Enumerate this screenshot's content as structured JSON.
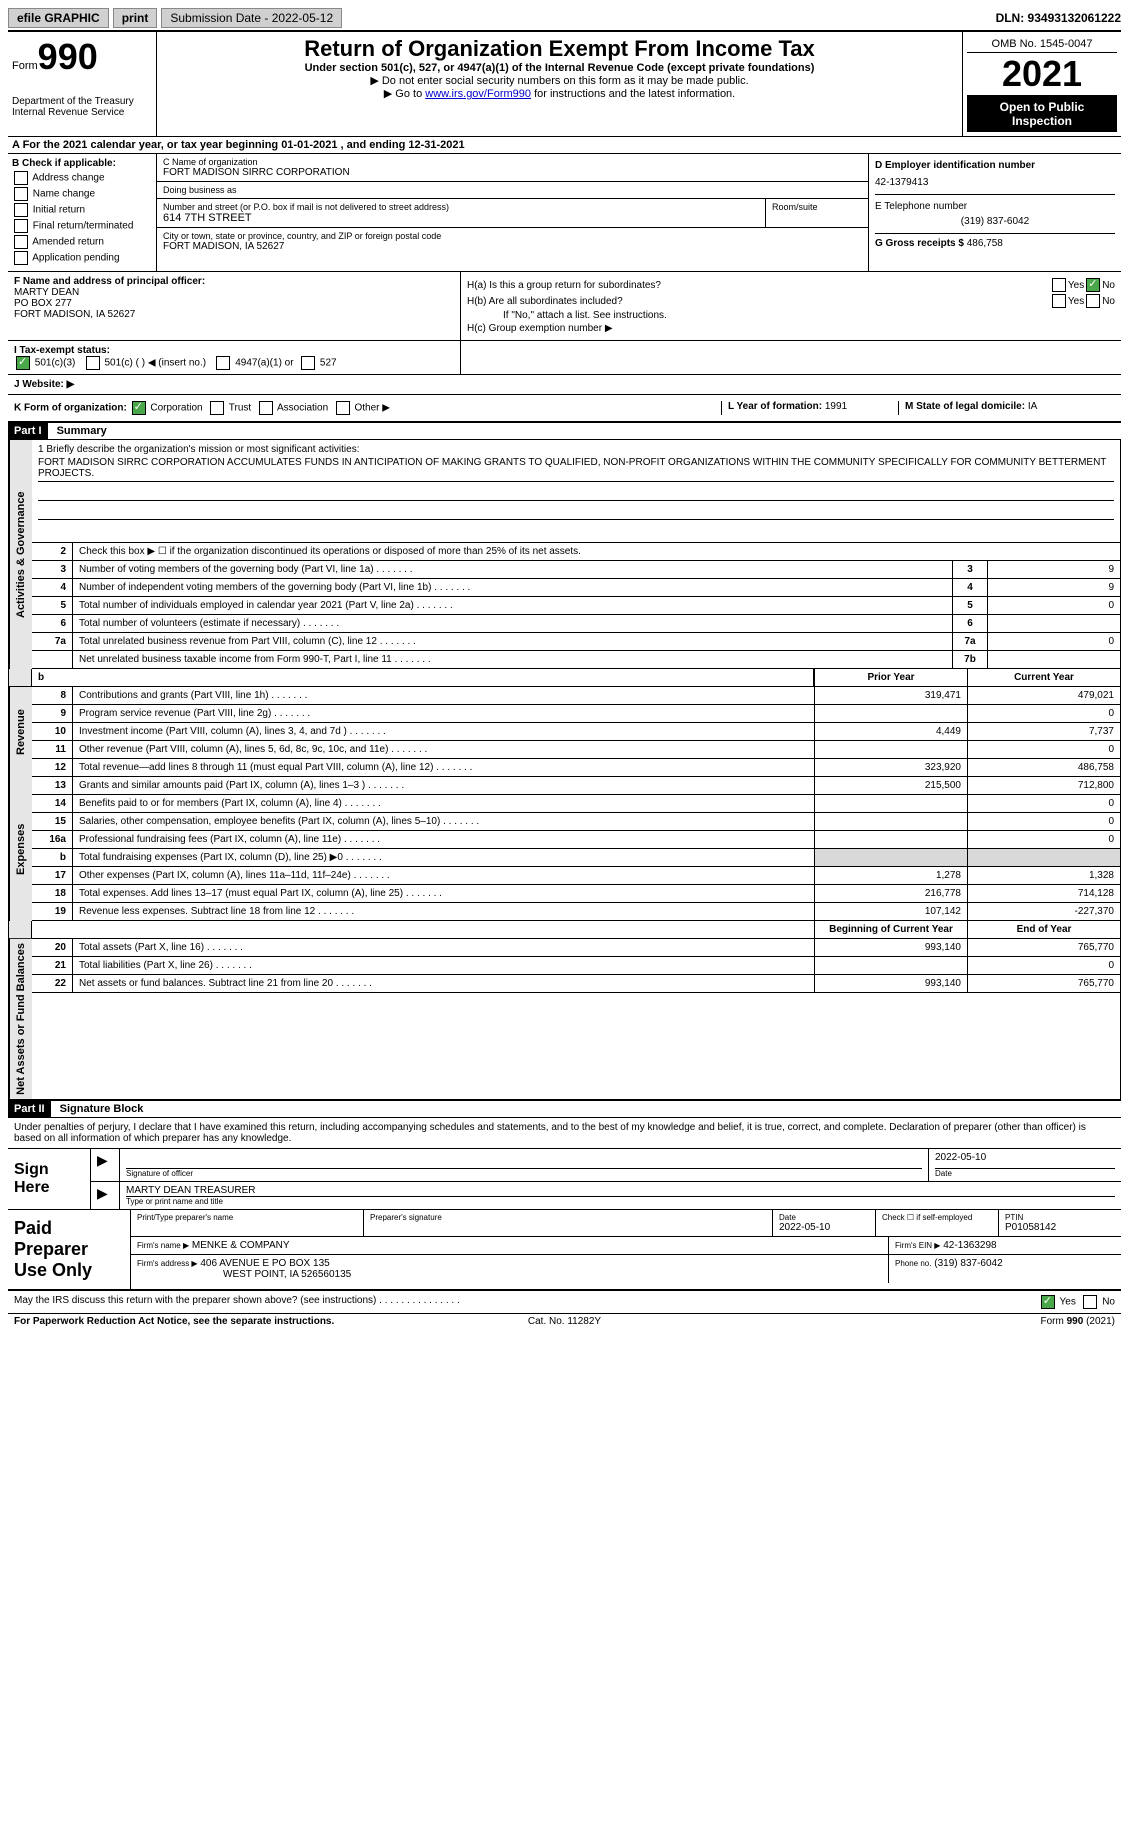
{
  "topbar": {
    "efile": "efile GRAPHIC",
    "print": "print",
    "sub_date_label": "Submission Date - 2022-05-12",
    "dln": "DLN: 93493132061222"
  },
  "header": {
    "form_word": "Form",
    "form_num": "990",
    "dept": "Department of the Treasury\nInternal Revenue Service",
    "title": "Return of Organization Exempt From Income Tax",
    "subtitle": "Under section 501(c), 527, or 4947(a)(1) of the Internal Revenue Code (except private foundations)",
    "instr1": "▶ Do not enter social security numbers on this form as it may be made public.",
    "instr2_pre": "▶ Go to ",
    "instr2_link": "www.irs.gov/Form990",
    "instr2_post": " for instructions and the latest information.",
    "omb": "OMB No. 1545-0047",
    "year": "2021",
    "open": "Open to Public Inspection"
  },
  "lineA": "A For the 2021 calendar year, or tax year beginning 01-01-2021   , and ending 12-31-2021",
  "boxB": {
    "label": "B Check if applicable:",
    "opts": [
      "Address change",
      "Name change",
      "Initial return",
      "Final return/terminated",
      "Amended return",
      "Application pending"
    ]
  },
  "boxC": {
    "name_lbl": "C Name of organization",
    "name": "FORT MADISON SIRRC CORPORATION",
    "dba_lbl": "Doing business as",
    "dba": "",
    "addr_lbl": "Number and street (or P.O. box if mail is not delivered to street address)",
    "addr": "614 7TH STREET",
    "room_lbl": "Room/suite",
    "city_lbl": "City or town, state or province, country, and ZIP or foreign postal code",
    "city": "FORT MADISON, IA  52627"
  },
  "boxD": {
    "ein_lbl": "D Employer identification number",
    "ein": "42-1379413",
    "phone_lbl": "E Telephone number",
    "phone": "(319) 837-6042",
    "gross_lbl": "G Gross receipts $",
    "gross": "486,758"
  },
  "boxF": {
    "lbl": "F Name and address of principal officer:",
    "name": "MARTY DEAN",
    "addr1": "PO BOX 277",
    "addr2": "FORT MADISON, IA  52627"
  },
  "boxH": {
    "a_lbl": "H(a)  Is this a group return for subordinates?",
    "b_lbl": "H(b)  Are all subordinates included?",
    "b_note": "If \"No,\" attach a list. See instructions.",
    "c_lbl": "H(c)  Group exemption number ▶",
    "yes": "Yes",
    "no": "No"
  },
  "lineI": {
    "lbl": "I   Tax-exempt status:",
    "o1": "501(c)(3)",
    "o2": "501(c) (  ) ◀ (insert no.)",
    "o3": "4947(a)(1) or",
    "o4": "527"
  },
  "lineJ": {
    "lbl": "J   Website: ▶"
  },
  "lineK": {
    "lbl": "K Form of organization:",
    "o1": "Corporation",
    "o2": "Trust",
    "o3": "Association",
    "o4": "Other ▶",
    "l_lbl": "L Year of formation:",
    "l_val": "1991",
    "m_lbl": "M State of legal domicile:",
    "m_val": "IA"
  },
  "part1": {
    "hdr": "Part I",
    "title": "Summary",
    "q1_lbl": "1   Briefly describe the organization's mission or most significant activities:",
    "q1_val": "FORT MADISON SIRRC CORPORATION ACCUMULATES FUNDS IN ANTICIPATION OF MAKING GRANTS TO QUALIFIED, NON-PROFIT ORGANIZATIONS WITHIN THE COMMUNITY SPECIFICALLY FOR COMMUNITY BETTERMENT PROJECTS.",
    "q2_lbl": "Check this box ▶ ☐ if the organization discontinued its operations or disposed of more than 25% of its net assets.",
    "tabs": {
      "act": "Activities & Governance",
      "rev": "Revenue",
      "exp": "Expenses",
      "net": "Net Assets or Fund Balances"
    },
    "rows_single": [
      {
        "n": "3",
        "d": "Number of voting members of the governing body (Part VI, line 1a)",
        "box": "3",
        "v": "9"
      },
      {
        "n": "4",
        "d": "Number of independent voting members of the governing body (Part VI, line 1b)",
        "box": "4",
        "v": "9"
      },
      {
        "n": "5",
        "d": "Total number of individuals employed in calendar year 2021 (Part V, line 2a)",
        "box": "5",
        "v": "0"
      },
      {
        "n": "6",
        "d": "Total number of volunteers (estimate if necessary)",
        "box": "6",
        "v": ""
      },
      {
        "n": "7a",
        "d": "Total unrelated business revenue from Part VIII, column (C), line 12",
        "box": "7a",
        "v": "0"
      },
      {
        "n": "",
        "d": "Net unrelated business taxable income from Form 990-T, Part I, line 11",
        "box": "7b",
        "v": ""
      }
    ],
    "col_prior": "Prior Year",
    "col_current": "Current Year",
    "rev_rows": [
      {
        "n": "8",
        "d": "Contributions and grants (Part VIII, line 1h)",
        "p": "319,471",
        "c": "479,021"
      },
      {
        "n": "9",
        "d": "Program service revenue (Part VIII, line 2g)",
        "p": "",
        "c": "0"
      },
      {
        "n": "10",
        "d": "Investment income (Part VIII, column (A), lines 3, 4, and 7d )",
        "p": "4,449",
        "c": "7,737"
      },
      {
        "n": "11",
        "d": "Other revenue (Part VIII, column (A), lines 5, 6d, 8c, 9c, 10c, and 11e)",
        "p": "",
        "c": "0"
      },
      {
        "n": "12",
        "d": "Total revenue—add lines 8 through 11 (must equal Part VIII, column (A), line 12)",
        "p": "323,920",
        "c": "486,758"
      }
    ],
    "exp_rows": [
      {
        "n": "13",
        "d": "Grants and similar amounts paid (Part IX, column (A), lines 1–3 )",
        "p": "215,500",
        "c": "712,800"
      },
      {
        "n": "14",
        "d": "Benefits paid to or for members (Part IX, column (A), line 4)",
        "p": "",
        "c": "0"
      },
      {
        "n": "15",
        "d": "Salaries, other compensation, employee benefits (Part IX, column (A), lines 5–10)",
        "p": "",
        "c": "0"
      },
      {
        "n": "16a",
        "d": "Professional fundraising fees (Part IX, column (A), line 11e)",
        "p": "",
        "c": "0"
      },
      {
        "n": "b",
        "d": "Total fundraising expenses (Part IX, column (D), line 25) ▶0",
        "p": "",
        "c": "",
        "shade": true
      },
      {
        "n": "17",
        "d": "Other expenses (Part IX, column (A), lines 11a–11d, 11f–24e)",
        "p": "1,278",
        "c": "1,328"
      },
      {
        "n": "18",
        "d": "Total expenses. Add lines 13–17 (must equal Part IX, column (A), line 25)",
        "p": "216,778",
        "c": "714,128"
      },
      {
        "n": "19",
        "d": "Revenue less expenses. Subtract line 18 from line 12",
        "p": "107,142",
        "c": "-227,370"
      }
    ],
    "col_begin": "Beginning of Current Year",
    "col_end": "End of Year",
    "net_rows": [
      {
        "n": "20",
        "d": "Total assets (Part X, line 16)",
        "p": "993,140",
        "c": "765,770"
      },
      {
        "n": "21",
        "d": "Total liabilities (Part X, line 26)",
        "p": "",
        "c": "0"
      },
      {
        "n": "22",
        "d": "Net assets or fund balances. Subtract line 21 from line 20",
        "p": "993,140",
        "c": "765,770"
      }
    ]
  },
  "part2": {
    "hdr": "Part II",
    "title": "Signature Block",
    "declare": "Under penalties of perjury, I declare that I have examined this return, including accompanying schedules and statements, and to the best of my knowledge and belief, it is true, correct, and complete. Declaration of preparer (other than officer) is based on all information of which preparer has any knowledge.",
    "sign_here": "Sign Here",
    "sig_officer_lbl": "Signature of officer",
    "sig_date": "2022-05-10",
    "date_lbl": "Date",
    "sig_name": "MARTY DEAN  TREASURER",
    "sig_name_lbl": "Type or print name and title",
    "paid_prep": "Paid Preparer Use Only",
    "prep_name_lbl": "Print/Type preparer's name",
    "prep_sig_lbl": "Preparer's signature",
    "prep_date_lbl": "Date",
    "prep_date": "2022-05-10",
    "self_emp_lbl": "Check ☐ if self-employed",
    "ptin_lbl": "PTIN",
    "ptin": "P01058142",
    "firm_name_lbl": "Firm's name    ▶",
    "firm_name": "MENKE & COMPANY",
    "firm_ein_lbl": "Firm's EIN ▶",
    "firm_ein": "42-1363298",
    "firm_addr_lbl": "Firm's address ▶",
    "firm_addr1": "406 AVENUE E PO BOX 135",
    "firm_addr2": "WEST POINT, IA  526560135",
    "firm_phone_lbl": "Phone no.",
    "firm_phone": "(319) 837-6042"
  },
  "footer": {
    "discuss": "May the IRS discuss this return with the preparer shown above? (see instructions)",
    "yes": "Yes",
    "no": "No",
    "paperwork": "For Paperwork Reduction Act Notice, see the separate instructions.",
    "cat": "Cat. No. 11282Y",
    "form": "Form 990 (2021)"
  }
}
